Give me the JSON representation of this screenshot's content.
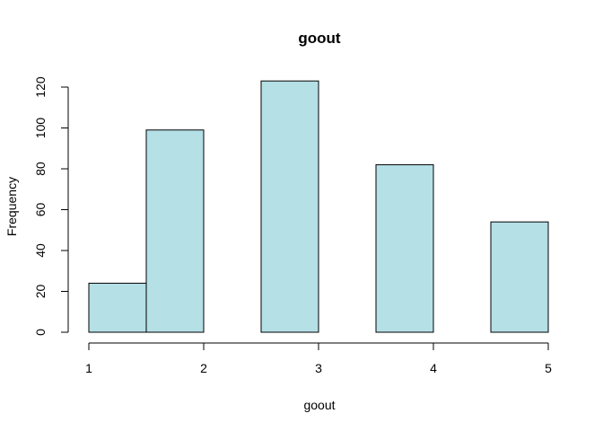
{
  "chart_data": {
    "type": "bar",
    "title": "goout",
    "xlabel": "goout",
    "ylabel": "Frequency",
    "bins": [
      {
        "x0": 1.0,
        "x1": 1.5,
        "value": 24
      },
      {
        "x0": 1.5,
        "x1": 2.0,
        "value": 99
      },
      {
        "x0": 2.0,
        "x1": 2.5,
        "value": 0
      },
      {
        "x0": 2.5,
        "x1": 3.0,
        "value": 123
      },
      {
        "x0": 3.0,
        "x1": 3.5,
        "value": 0
      },
      {
        "x0": 3.5,
        "x1": 4.0,
        "value": 82
      },
      {
        "x0": 4.0,
        "x1": 4.5,
        "value": 0
      },
      {
        "x0": 4.5,
        "x1": 5.0,
        "value": 54
      }
    ],
    "xlim": [
      1,
      5
    ],
    "ylim": [
      0,
      120
    ],
    "x_ticks": [
      1,
      2,
      3,
      4,
      5
    ],
    "y_ticks": [
      0,
      20,
      40,
      60,
      80,
      100,
      120
    ],
    "bar_color": "#b4e0e6",
    "grid": false
  }
}
